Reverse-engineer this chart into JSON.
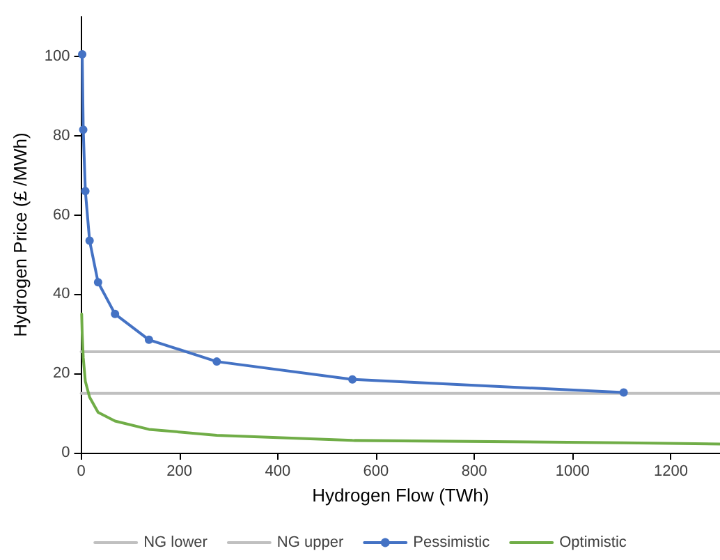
{
  "chart_data": {
    "type": "line",
    "xlabel": "Hydrogen Flow (TWh)",
    "ylabel": "Hydrogen Price (£ /MWh)",
    "xlim": [
      0,
      1300
    ],
    "xticks": [
      0,
      200,
      400,
      600,
      800,
      1000,
      1200
    ],
    "ylim": [
      0,
      110
    ],
    "yticks": [
      0,
      20,
      40,
      60,
      80,
      100
    ],
    "grid": false,
    "legend": "bottom",
    "series": [
      {
        "name": "NG lower",
        "color": "#c0c0c0",
        "x": [
          0,
          1300
        ],
        "values": [
          15,
          15
        ],
        "marker": "none"
      },
      {
        "name": "NG upper",
        "color": "#c0c0c0",
        "x": [
          0,
          1300
        ],
        "values": [
          25.5,
          25.5
        ],
        "marker": "none"
      },
      {
        "name": "Pessimistic",
        "color": "#4472c4",
        "x": [
          2.2,
          4.3,
          8.6,
          17.25,
          34.5,
          69,
          138,
          276,
          552,
          1104
        ],
        "values": [
          100.5,
          81.5,
          66,
          53.5,
          43,
          35,
          28.5,
          23,
          18.5,
          15.2
        ],
        "marker": "circle"
      },
      {
        "name": "Optimistic",
        "color": "#70ad47",
        "x": [
          1.1,
          2.2,
          4.3,
          8.6,
          17.25,
          34.5,
          69,
          138,
          276,
          552,
          1104,
          1300
        ],
        "values": [
          35,
          30,
          24,
          18,
          14,
          10.2,
          8,
          5.9,
          4.4,
          3.1,
          2.5,
          2.2
        ],
        "marker": "none"
      }
    ]
  }
}
